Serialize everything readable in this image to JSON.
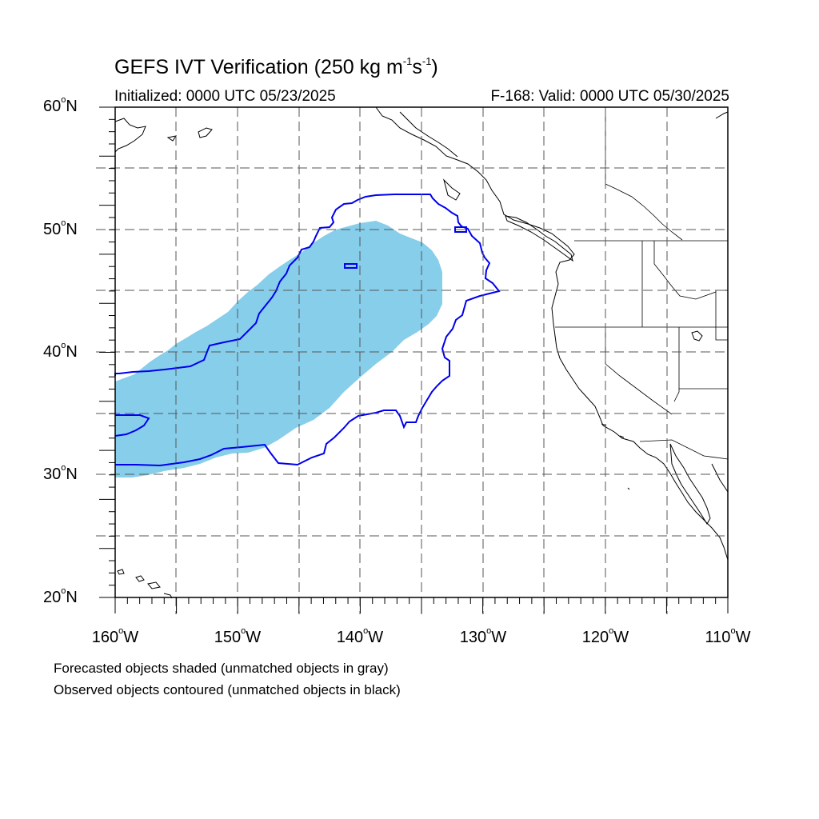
{
  "title": {
    "main": "GEFS IVT Verification (250 kg m",
    "sup1": "-1",
    "mid": "s",
    "sup2": "-1",
    "end": ")"
  },
  "initialized": "Initialized: 0000 UTC 05/23/2025",
  "valid": "F-168: Valid: 0000 UTC 05/30/2025",
  "lat_labels": [
    {
      "num": "60",
      "deg": "o",
      "hemi": "N"
    },
    {
      "num": "50",
      "deg": "o",
      "hemi": "N"
    },
    {
      "num": "40",
      "deg": "o",
      "hemi": "N"
    },
    {
      "num": "30",
      "deg": "o",
      "hemi": "N"
    },
    {
      "num": "20",
      "deg": "o",
      "hemi": "N"
    }
  ],
  "lon_labels": [
    {
      "num": "160",
      "deg": "o",
      "hemi": "W"
    },
    {
      "num": "150",
      "deg": "o",
      "hemi": "W"
    },
    {
      "num": "140",
      "deg": "o",
      "hemi": "W"
    },
    {
      "num": "130",
      "deg": "o",
      "hemi": "W"
    },
    {
      "num": "120",
      "deg": "o",
      "hemi": "W"
    },
    {
      "num": "110",
      "deg": "o",
      "hemi": "W"
    }
  ],
  "notes": [
    "Forecasted objects shaded (unmatched objects in gray)",
    "Observed objects contoured (unmatched objects in black)"
  ],
  "colors": {
    "forecast_fill": "#87ceeb",
    "observed_contour": "#0000ee",
    "coastline": "#000000",
    "grid": "#555555"
  }
}
